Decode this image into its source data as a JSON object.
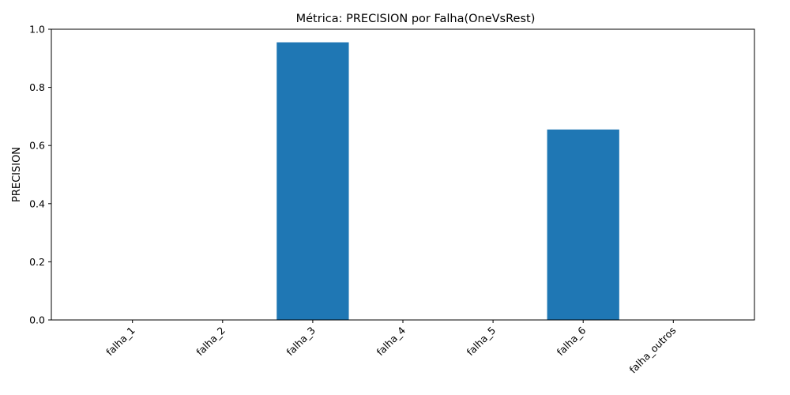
{
  "chart_data": {
    "type": "bar",
    "title": "Métrica: PRECISION por Falha(OneVsRest)",
    "xlabel": "",
    "ylabel": "PRECISION",
    "categories": [
      "falha_1",
      "falha_2",
      "falha_3",
      "falha_4",
      "falha_5",
      "falha_6",
      "falha_outros"
    ],
    "values": [
      0.0,
      0.0,
      0.955,
      0.0,
      0.0,
      0.655,
      0.0
    ],
    "ylim": [
      0,
      1.0
    ],
    "yticks": [
      "0.0",
      "0.2",
      "0.4",
      "0.6",
      "0.8",
      "1.0"
    ],
    "grid": false,
    "bar_color": "#1f77b4"
  }
}
